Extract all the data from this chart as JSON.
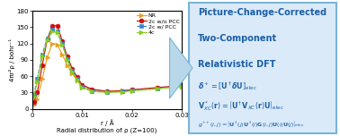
{
  "x_label_full": "Radial distribution of ρ (Z=100)",
  "r_label": "r / Å",
  "ylabel": "4πr²ρ / bohr⁻¹",
  "ylim": [
    0,
    180
  ],
  "xlim": [
    0,
    0.03
  ],
  "yticks": [
    0,
    30,
    60,
    90,
    120,
    150,
    180
  ],
  "xticks": [
    0,
    0.01,
    0.02,
    0.03
  ],
  "background_color": "#dbeaf8",
  "border_color": "#7ab4d8",
  "text_color": "#1a5fa8",
  "arrow_color": "#a8cfe0",
  "series_order": [
    "NR",
    "2c w/o PCC",
    "2c w/ PCC",
    "4c"
  ],
  "series": {
    "NR": {
      "color": "#e8a020",
      "marker": ">",
      "linestyle": "-",
      "markersize": 3.5,
      "x": [
        0.0003,
        0.001,
        0.002,
        0.003,
        0.004,
        0.005,
        0.006,
        0.007,
        0.008,
        0.009,
        0.01,
        0.012,
        0.015,
        0.018,
        0.02,
        0.025,
        0.03
      ],
      "y": [
        8,
        18,
        55,
        95,
        120,
        118,
        100,
        80,
        65,
        52,
        42,
        35,
        32,
        34,
        35,
        38,
        42
      ]
    },
    "2c w/o PCC": {
      "color": "#cc1111",
      "marker": "o",
      "linestyle": "-",
      "markersize": 3.5,
      "x": [
        0.0003,
        0.001,
        0.002,
        0.003,
        0.004,
        0.005,
        0.006,
        0.007,
        0.008,
        0.009,
        0.01,
        0.012,
        0.015,
        0.018,
        0.02,
        0.025,
        0.03
      ],
      "y": [
        12,
        30,
        80,
        128,
        152,
        153,
        125,
        96,
        74,
        58,
        44,
        36,
        32,
        33,
        35,
        39,
        43
      ]
    },
    "2c w/ PCC": {
      "color": "#3388cc",
      "marker": "s",
      "linestyle": "--",
      "markersize": 3.5,
      "x": [
        0.0003,
        0.001,
        0.002,
        0.003,
        0.004,
        0.005,
        0.006,
        0.007,
        0.008,
        0.009,
        0.01,
        0.012,
        0.015,
        0.018,
        0.02,
        0.025,
        0.03
      ],
      "y": [
        25,
        55,
        100,
        130,
        145,
        143,
        120,
        92,
        70,
        55,
        40,
        33,
        31,
        32,
        34,
        37,
        42
      ]
    },
    "4c": {
      "color": "#88cc22",
      "marker": ">",
      "linestyle": "-",
      "markersize": 3.5,
      "x": [
        0.0003,
        0.001,
        0.002,
        0.003,
        0.004,
        0.005,
        0.006,
        0.007,
        0.008,
        0.009,
        0.01,
        0.012,
        0.015,
        0.018,
        0.02,
        0.025,
        0.03
      ],
      "y": [
        22,
        50,
        96,
        126,
        142,
        140,
        118,
        90,
        68,
        53,
        39,
        32,
        30,
        31,
        33,
        37,
        41
      ]
    }
  }
}
